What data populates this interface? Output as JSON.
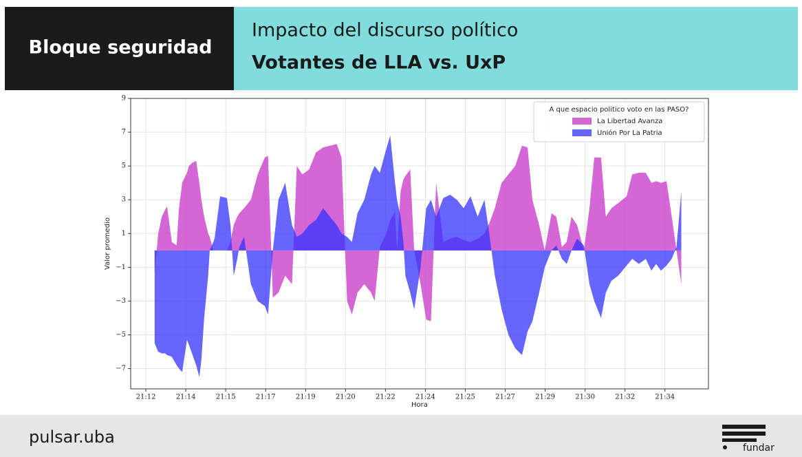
{
  "header": {
    "label": "Bloque seguridad",
    "title": "Impacto del discurso político",
    "subtitle": "Votantes de LLA vs. UxP"
  },
  "chart_data": {
    "type": "area",
    "xlabel": "Hora",
    "ylabel": "Valor promedio",
    "legend_title": "A que espacio politico voto en las PASO?",
    "legend": "upper right",
    "grid": true,
    "xlim": [
      -3.8,
      140.9
    ],
    "ylim": [
      -8.2,
      9
    ],
    "xticks": [
      {
        "value": 0,
        "label": "21:12"
      },
      {
        "value": 10,
        "label": "21:14"
      },
      {
        "value": 20,
        "label": "21:15"
      },
      {
        "value": 30,
        "label": "21:17"
      },
      {
        "value": 40,
        "label": "21:19"
      },
      {
        "value": 50,
        "label": "21:20"
      },
      {
        "value": 60,
        "label": "21:22"
      },
      {
        "value": 70,
        "label": "21:24"
      },
      {
        "value": 80,
        "label": "21:25"
      },
      {
        "value": 90,
        "label": "21:27"
      },
      {
        "value": 100,
        "label": "21:29"
      },
      {
        "value": 110,
        "label": "21:30"
      },
      {
        "value": 120,
        "label": "21:32"
      },
      {
        "value": 130,
        "label": "21:34"
      }
    ],
    "yticks": [
      9,
      7,
      5,
      3,
      1,
      {
        "value": -1,
        "label": "−1"
      },
      {
        "value": -3,
        "label": "−3"
      },
      {
        "value": -5,
        "label": "−5"
      },
      {
        "value": -7,
        "label": "−7"
      }
    ],
    "x": [
      2.2,
      3.1,
      4.0,
      4.8,
      5.3,
      6.5,
      7.7,
      8.3,
      9.1,
      10.3,
      10.8,
      11.7,
      12.6,
      13.4,
      13.9,
      14.6,
      15.6,
      16.0,
      16.9,
      17.2,
      18.6,
      20.3,
      21.2,
      22.0,
      22.9,
      23.4,
      24.6,
      26.3,
      28.0,
      29.8,
      30.6,
      31.8,
      33.2,
      34.9,
      36.6,
      37.8,
      39.2,
      40.9,
      42.6,
      44.4,
      46.1,
      47.8,
      49.0,
      50.4,
      51.6,
      53.0,
      54.7,
      56.4,
      57.3,
      58.6,
      60.2,
      61.2,
      62.4,
      62.9,
      63.8,
      64.5,
      65.0,
      66.2,
      67.2,
      68.8,
      70.2,
      71.4,
      72.7,
      74.5,
      76.2,
      77.9,
      79.6,
      81.3,
      83.1,
      84.8,
      86.0,
      87.4,
      89.1,
      90.8,
      92.5,
      94.2,
      95.6,
      96.8,
      98.5,
      99.9,
      101.6,
      102.8,
      104.2,
      105.4,
      106.6,
      108.0,
      109.7,
      111.1,
      112.3,
      114.0,
      115.2,
      116.6,
      118.3,
      120.4,
      121.8,
      123.5,
      125.2,
      126.6,
      127.8,
      129.0,
      130.4,
      131.7,
      132.9,
      134.1
    ],
    "series": [
      {
        "name": "La Libertad Avanza",
        "color": "rgba(204,68,204,0.82)",
        "values": [
          -1.3,
          1.0,
          2.0,
          2.4,
          2.6,
          0.5,
          0.3,
          2.5,
          4.0,
          4.6,
          5.0,
          5.2,
          5.3,
          4.0,
          3.0,
          2.0,
          1.0,
          0.8,
          0.0,
          0.0,
          0.0,
          0.0,
          0.5,
          1.5,
          2.0,
          2.2,
          2.5,
          3.0,
          4.5,
          5.5,
          5.6,
          -2.8,
          -2.5,
          -1.5,
          -2.0,
          5.0,
          4.5,
          4.8,
          5.8,
          6.1,
          6.2,
          6.3,
          5.5,
          -3.0,
          -3.8,
          -2.5,
          -2.0,
          -2.5,
          -3.0,
          0.2,
          1.0,
          1.8,
          2.3,
          0.0,
          3.5,
          4.2,
          4.4,
          4.8,
          0.0,
          -2.0,
          -4.1,
          -4.2,
          4.0,
          0.5,
          0.7,
          0.8,
          0.6,
          0.5,
          0.7,
          1.0,
          1.6,
          2.5,
          4.0,
          4.5,
          5.0,
          6.2,
          6.1,
          3.0,
          1.5,
          0.0,
          2.2,
          2.0,
          0.2,
          0.5,
          2.0,
          1.5,
          0.0,
          2.5,
          5.5,
          5.5,
          2.0,
          2.5,
          2.8,
          3.2,
          4.5,
          4.6,
          4.6,
          4.0,
          4.1,
          4.0,
          4.1,
          2.0,
          0.0,
          -2.0
        ]
      },
      {
        "name": "Unión Por La Patria",
        "color": "rgba(51,51,255,0.75)",
        "values": [
          -5.5,
          -6.0,
          -6.1,
          -6.1,
          -6.2,
          -6.3,
          -6.8,
          -7.0,
          -7.2,
          -5.3,
          -5.6,
          -6.2,
          -6.8,
          -7.5,
          -6.5,
          -4.0,
          -1.5,
          0.0,
          0.5,
          0.7,
          3.2,
          3.1,
          1.5,
          -1.5,
          -0.5,
          0.2,
          0.8,
          -2.0,
          -3.0,
          -3.3,
          -3.8,
          0.0,
          3.0,
          4.0,
          1.5,
          0.8,
          1.0,
          1.5,
          1.8,
          2.5,
          2.0,
          1.5,
          1.0,
          0.8,
          0.5,
          2.2,
          3.0,
          4.5,
          5.0,
          4.6,
          6.0,
          6.8,
          4.0,
          3.0,
          2.0,
          0.5,
          -1.5,
          -2.5,
          -3.5,
          -1.0,
          2.5,
          3.0,
          2.0,
          3.1,
          3.3,
          3.0,
          2.5,
          3.2,
          2.0,
          3.0,
          1.0,
          -1.5,
          -3.5,
          -5.0,
          -5.8,
          -6.2,
          -4.8,
          -4.2,
          -2.5,
          -1.0,
          0.0,
          0.3,
          -0.5,
          -0.8,
          0.0,
          0.7,
          0.3,
          -2.0,
          -3.0,
          -4.0,
          -2.5,
          -1.8,
          -1.5,
          -0.9,
          -0.5,
          -0.8,
          -0.5,
          -1.2,
          -0.8,
          -1.2,
          -0.9,
          -0.5,
          0.2,
          3.5
        ]
      }
    ]
  },
  "footer": {
    "left_logo": "pulsar.uba",
    "right_logo": "fundar"
  }
}
